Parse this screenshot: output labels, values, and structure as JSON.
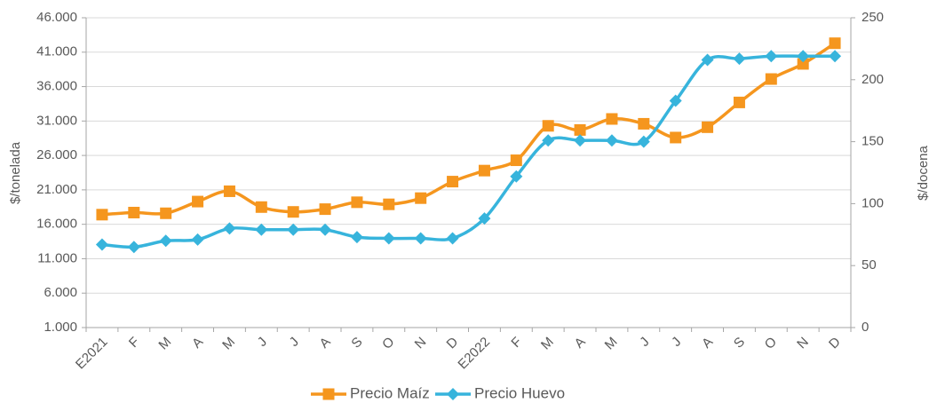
{
  "chart_data": {
    "type": "line",
    "categories": [
      "E2021",
      "F",
      "M",
      "A",
      "M",
      "J",
      "J",
      "A",
      "S",
      "O",
      "N",
      "D",
      "E2022",
      "F",
      "M",
      "A",
      "M",
      "J",
      "J",
      "A",
      "S",
      "O",
      "N",
      "D"
    ],
    "y_label": "$/tonelada",
    "y2_label": "$/docena",
    "ylim": [
      1000,
      46000
    ],
    "yticks": [
      {
        "value": 1000,
        "label": "1.000"
      },
      {
        "value": 6000,
        "label": "6.000"
      },
      {
        "value": 11000,
        "label": "11.000"
      },
      {
        "value": 16000,
        "label": "16.000"
      },
      {
        "value": 21000,
        "label": "21.000"
      },
      {
        "value": 26000,
        "label": "26.000"
      },
      {
        "value": 31000,
        "label": "31.000"
      },
      {
        "value": 36000,
        "label": "36.000"
      },
      {
        "value": 41000,
        "label": "41.000"
      },
      {
        "value": 46000,
        "label": "46.000"
      }
    ],
    "y2lim": [
      0,
      250
    ],
    "y2ticks": [
      0,
      50,
      100,
      150,
      200,
      250
    ],
    "grid": true,
    "series": [
      {
        "name": "Precio Maíz",
        "color": "#f5961e",
        "marker": "square",
        "values": [
          17400,
          17700,
          17600,
          19300,
          20800,
          18500,
          17800,
          18200,
          19200,
          18900,
          19800,
          22200,
          23800,
          25300,
          30300,
          29700,
          31300,
          30600,
          28600,
          30100,
          33700,
          37100,
          39300,
          42300
        ]
      },
      {
        "name": "Precio Huevo",
        "color": "#37b4dc",
        "marker": "diamond",
        "axis": "y2",
        "values": [
          67,
          65,
          70,
          71,
          80,
          79,
          79,
          79,
          73,
          72,
          72,
          72,
          88,
          122,
          151,
          151,
          151,
          150,
          183,
          216,
          217,
          219,
          219,
          219
        ]
      }
    ]
  }
}
